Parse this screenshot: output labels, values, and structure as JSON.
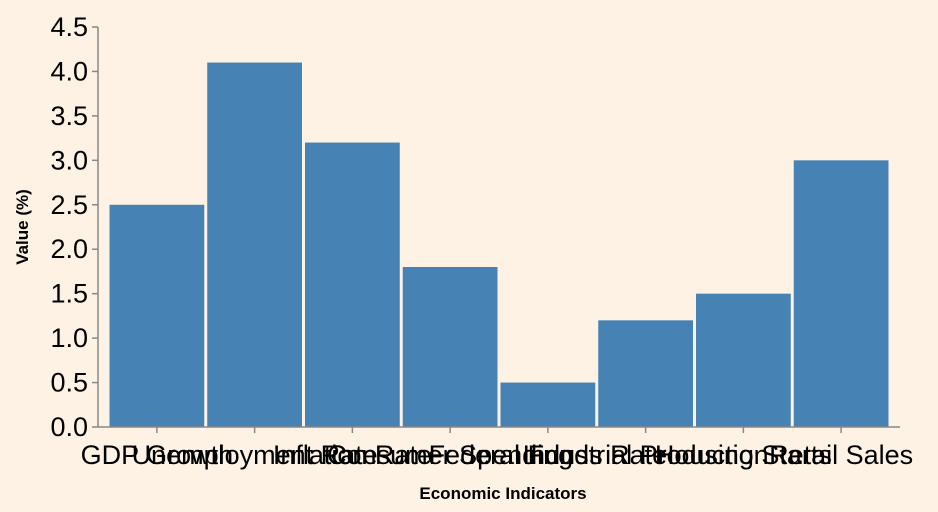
{
  "colors": {
    "background": "#fdf2e4",
    "bar": "#4682b4",
    "axis": "#888888"
  },
  "chart_data": {
    "type": "bar",
    "categories": [
      "GDP Growth",
      "Unemployment Rate",
      "Inflation Rate",
      "Consumer Spending",
      "Federal Funds Rate",
      "Industrial Production",
      "Housing Starts",
      "Retail Sales"
    ],
    "values": [
      2.5,
      4.1,
      3.2,
      1.8,
      0.5,
      1.2,
      1.5,
      3.0
    ],
    "xlabel": "Economic Indicators",
    "ylabel": "Value (%)",
    "ylim": [
      0,
      4.5
    ],
    "yticks": [
      "0.0",
      "0.5",
      "1.0",
      "1.5",
      "2.0",
      "2.5",
      "3.0",
      "3.5",
      "4.0",
      "4.5"
    ],
    "grid": false,
    "legend": "none"
  }
}
